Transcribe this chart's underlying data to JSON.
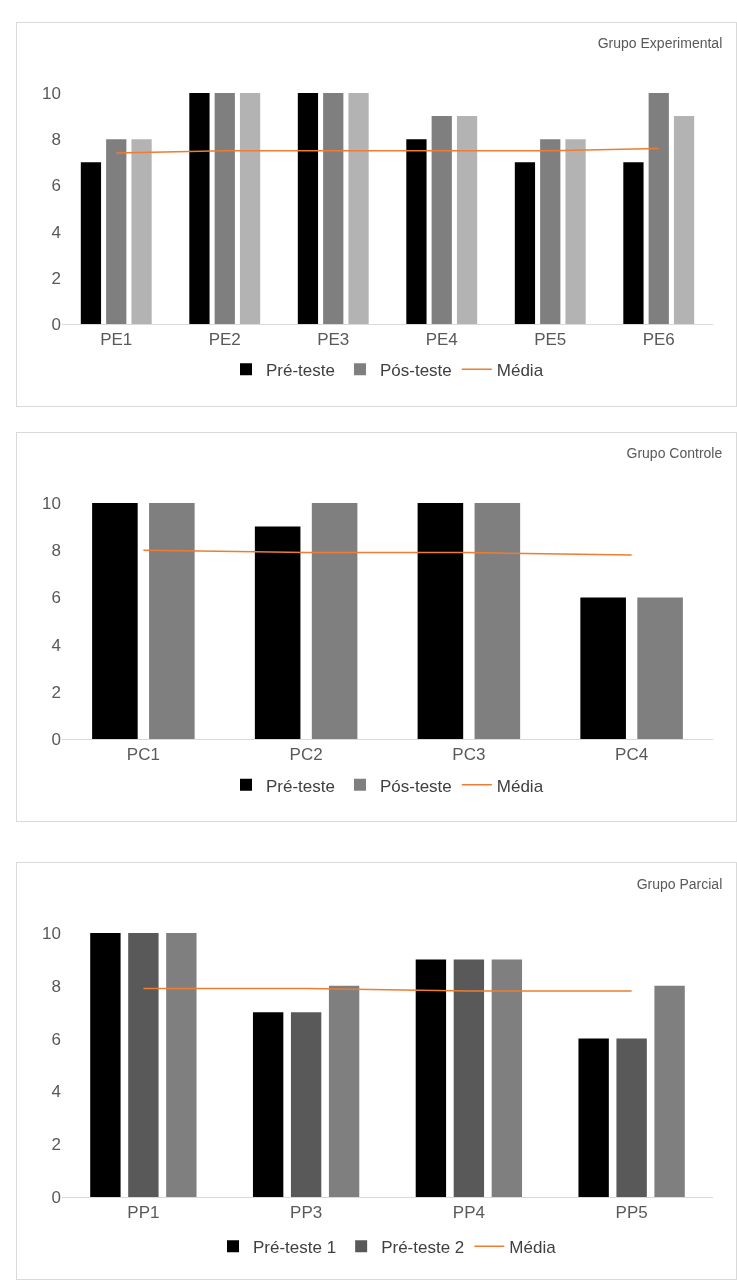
{
  "chart_data": [
    {
      "type": "bar",
      "title": "Grupo Experimental",
      "categories": [
        "PE1",
        "PE2",
        "PE3",
        "PE4",
        "PE5",
        "PE6"
      ],
      "ylim": [
        0,
        10
      ],
      "yticks": [
        0,
        2,
        4,
        6,
        8,
        10
      ],
      "grid": false,
      "legend": "bottom",
      "series": [
        {
          "name": "Pré-teste",
          "color": "#000000",
          "values": [
            7,
            10,
            10,
            8,
            7,
            7
          ]
        },
        {
          "name": "Pós-teste",
          "color": "#7f7f7f",
          "values": [
            8,
            10,
            10,
            9,
            8,
            10
          ]
        },
        {
          "color": "#b3b3b3",
          "values": [
            8,
            10,
            10,
            9,
            8,
            9
          ]
        },
        {
          "name": "Média",
          "type": "line",
          "color": "#ed7d31",
          "values": [
            7.4,
            7.5,
            7.5,
            7.5,
            7.5,
            7.6
          ]
        }
      ]
    },
    {
      "type": "bar",
      "title": "Grupo Controle",
      "categories": [
        "PC1",
        "PC2",
        "PC3",
        "PC4"
      ],
      "ylim": [
        0,
        10
      ],
      "yticks": [
        0,
        2,
        4,
        6,
        8,
        10
      ],
      "grid": false,
      "legend": "bottom",
      "series": [
        {
          "name": "Pré-teste",
          "color": "#000000",
          "values": [
            10,
            9,
            10,
            6
          ]
        },
        {
          "name": "Pós-teste",
          "color": "#7f7f7f",
          "values": [
            10,
            10,
            10,
            6
          ]
        },
        {
          "name": "Média",
          "type": "line",
          "color": "#ed7d31",
          "values": [
            8.0,
            7.9,
            7.9,
            7.8
          ]
        }
      ]
    },
    {
      "type": "bar",
      "title": "Grupo Parcial",
      "categories": [
        "PP1",
        "PP3",
        "PP4",
        "PP5"
      ],
      "ylim": [
        0,
        10
      ],
      "yticks": [
        0,
        2,
        4,
        6,
        8,
        10
      ],
      "grid": false,
      "legend": "bottom",
      "series": [
        {
          "name": "Pré-teste 1",
          "color": "#000000",
          "values": [
            10,
            7,
            9,
            6
          ]
        },
        {
          "name": "Pré-teste 2",
          "color": "#595959",
          "values": [
            10,
            7,
            9,
            6
          ]
        },
        {
          "color": "#7f7f7f",
          "values": [
            10,
            8,
            9,
            8
          ]
        },
        {
          "name": "Média",
          "type": "line",
          "color": "#ed7d31",
          "values": [
            7.9,
            7.9,
            7.8,
            7.8
          ]
        }
      ]
    }
  ]
}
